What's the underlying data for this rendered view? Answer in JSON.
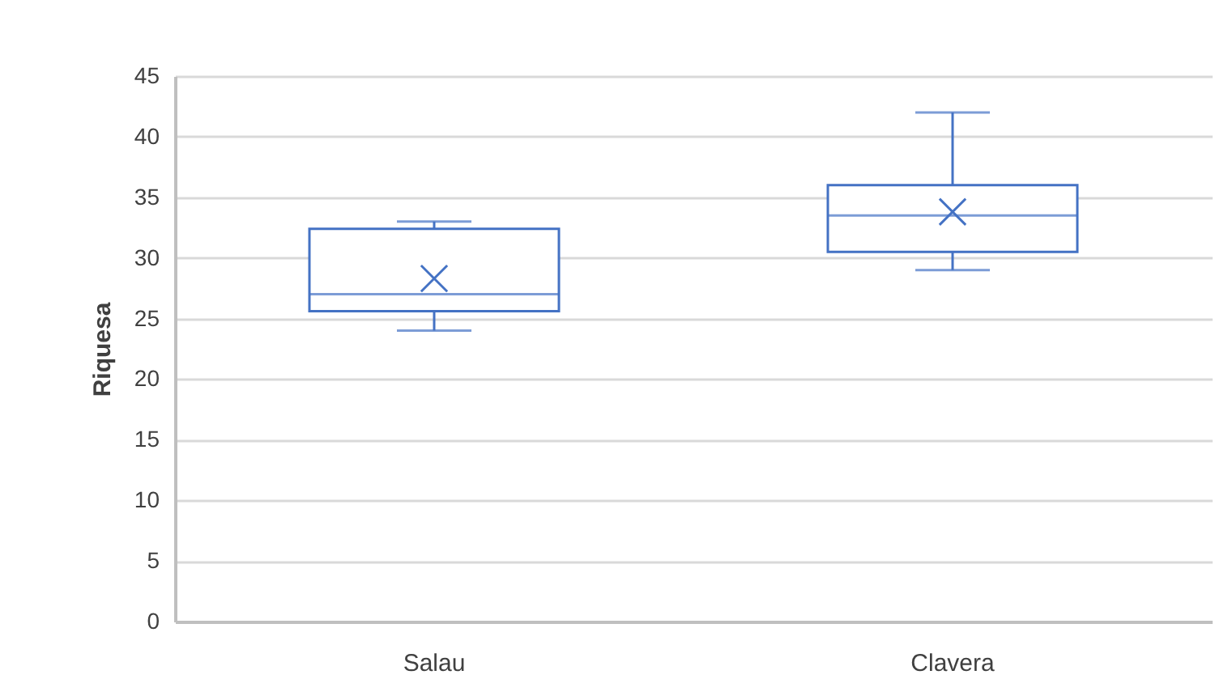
{
  "chart_data": {
    "type": "box",
    "ylabel": "Riquesa",
    "categories": [
      "Salau",
      "Clavera"
    ],
    "color": "#4472c4",
    "boxes": [
      {
        "low": 24,
        "q1": 25.6,
        "median": 27,
        "q3": 32.4,
        "high": 33,
        "mean": 28.3
      },
      {
        "low": 29,
        "q1": 30.5,
        "median": 33.5,
        "q3": 36,
        "high": 42,
        "mean": 33.8
      }
    ],
    "ylim": [
      0,
      45
    ],
    "yticks": [
      0,
      5,
      10,
      15,
      20,
      25,
      30,
      35,
      40,
      45
    ],
    "grid": "y"
  }
}
